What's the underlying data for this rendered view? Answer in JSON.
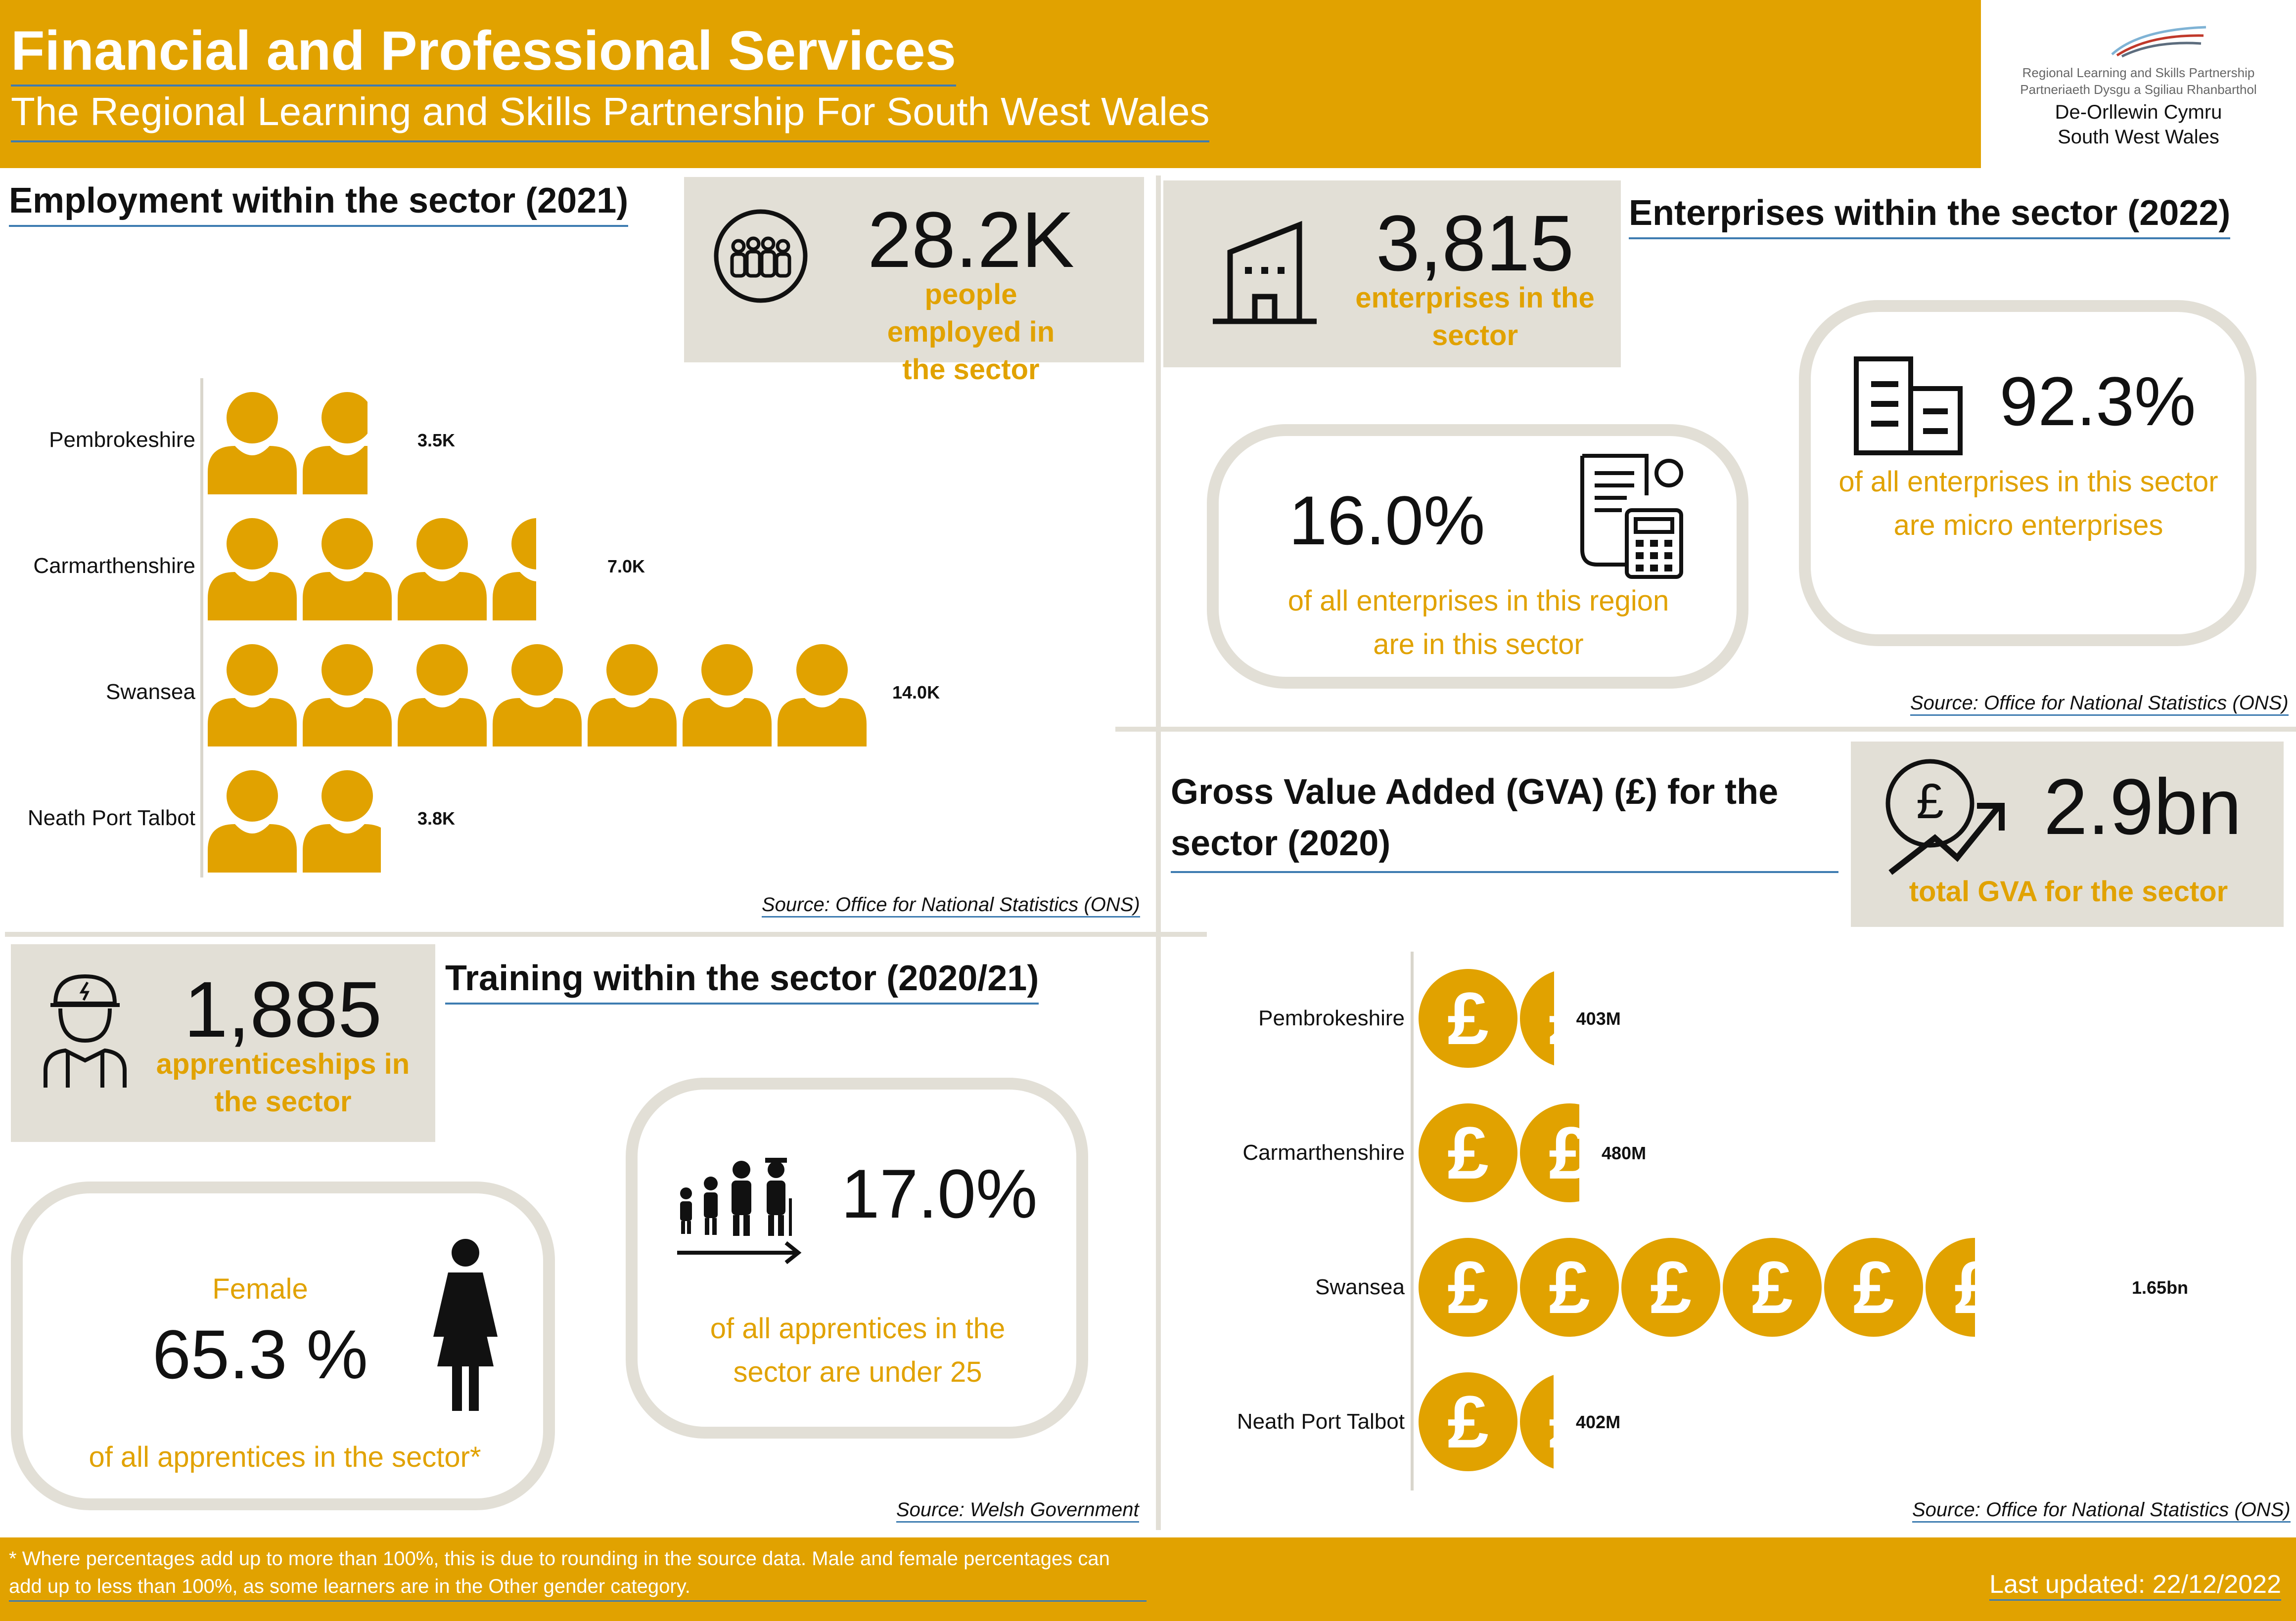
{
  "header": {
    "title": "Financial and Professional Services",
    "subtitle": "The Regional Learning and Skills Partnership For South West Wales",
    "logo_line1": "Regional Learning and Skills Partnership",
    "logo_line2": "Partneriaeth Dysgu a Sgiliau Rhanbarthol",
    "logo_line3": "De-Orllewin Cymru",
    "logo_line4": "South West Wales"
  },
  "employment": {
    "title": "Employment within the sector (2021)",
    "total": "28.2K",
    "total_label": "people employed in the sector",
    "source": "Source: Office for National Statistics (ONS)",
    "rows": [
      {
        "name": "Pembrokeshire",
        "label": "3.5K",
        "value": 3.5
      },
      {
        "name": "Carmarthenshire",
        "label": "7.0K",
        "value": 7.0
      },
      {
        "name": "Swansea",
        "label": "14.0K",
        "value": 14.0
      },
      {
        "name": "Neath Port Talbot",
        "label": "3.8K",
        "value": 3.8
      }
    ]
  },
  "enterprises": {
    "title": "Enterprises within the sector (2022)",
    "total": "3,815",
    "total_label": "enterprises in the sector",
    "share_region": "16.0%",
    "share_region_label": "of all enterprises in this region are in this sector",
    "micro": "92.3%",
    "micro_label": "of all enterprises in this sector are micro enterprises",
    "source": "Source: Office for National Statistics (ONS)"
  },
  "gva": {
    "title": "Gross Value Added (GVA) (£) for the sector (2020)",
    "total": "2.9bn",
    "total_label": "total GVA for the sector",
    "coin_symbol": "£",
    "source": "Source: Office for National Statistics (ONS)",
    "rows": [
      {
        "name": "Pembrokeshire",
        "label": "403M",
        "value": 403
      },
      {
        "name": "Carmarthenshire",
        "label": "480M",
        "value": 480
      },
      {
        "name": "Swansea",
        "label": "1.65bn",
        "value": 1650
      },
      {
        "name": "Neath Port Talbot",
        "label": "402M",
        "value": 402
      }
    ]
  },
  "training": {
    "title": "Training within the sector (2020/21)",
    "total": "1,885",
    "total_label": "apprenticeships in the sector",
    "female_label": "Female",
    "female_pct": "65.3 %",
    "female_desc": "of all apprentices in the sector*",
    "under25_pct": "17.0%",
    "under25_desc": "of all apprentices in the sector are under 25",
    "source": "Source: Welsh Government"
  },
  "footer": {
    "note": "* Where percentages add up to more than 100%, this is due to rounding in the source data. Male and female percentages can add up to less than 100%, as some learners are in the Other gender category.",
    "updated": "Last updated: 22/12/2022"
  },
  "colors": {
    "gold": "#E1A200",
    "panel": "#E2DFD6",
    "rule": "#3E7CB1"
  }
}
